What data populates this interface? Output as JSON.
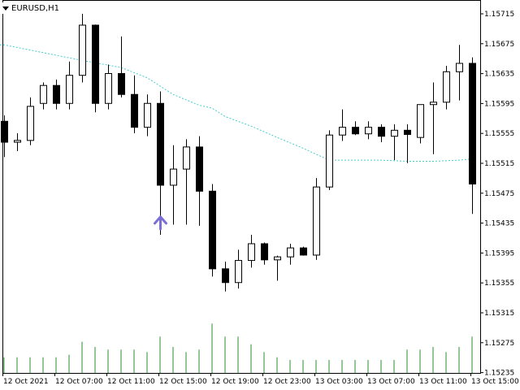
{
  "window": {
    "symbol_label": "EURUSD,H1"
  },
  "colors": {
    "background": "#ffffff",
    "axis": "#000000",
    "bull_body": "#ffffff",
    "bear_body": "#000000",
    "candle_outline": "#000000",
    "moving_average": "#48cccc",
    "volume": "#2e8b2e",
    "arrow": "#7b6fd6"
  },
  "y_axis_labels": [
    "1.15715",
    "1.15675",
    "1.15635",
    "1.15595",
    "1.15555",
    "1.15515",
    "1.15475",
    "1.15435",
    "1.15395",
    "1.15355",
    "1.15315",
    "1.15275",
    "1.15235"
  ],
  "x_axis_labels": [
    "12 Oct 2021",
    "12 Oct 07:00",
    "12 Oct 11:00",
    "12 Oct 15:00",
    "12 Oct 19:00",
    "12 Oct 23:00",
    "13 Oct 03:00",
    "13 Oct 07:00",
    "13 Oct 11:00",
    "13 Oct 15:00"
  ],
  "chart_data": {
    "type": "candlestick",
    "symbol": "EURUSD",
    "timeframe": "H1",
    "ylim": [
      1.15228,
      1.15735
    ],
    "candles": [
      {
        "o": 1.15535,
        "h": 1.15545,
        "l": 1.15475,
        "c": 1.155
      },
      {
        "o": 1.155,
        "h": 1.15515,
        "l": 1.15485,
        "c": 1.15503
      },
      {
        "o": 1.15503,
        "h": 1.15575,
        "l": 1.15495,
        "c": 1.1556
      },
      {
        "o": 1.15565,
        "h": 1.156,
        "l": 1.15555,
        "c": 1.15595
      },
      {
        "o": 1.15595,
        "h": 1.15605,
        "l": 1.15555,
        "c": 1.15565
      },
      {
        "o": 1.15565,
        "h": 1.15635,
        "l": 1.15555,
        "c": 1.15612
      },
      {
        "o": 1.15612,
        "h": 1.15715,
        "l": 1.156,
        "c": 1.15696
      },
      {
        "o": 1.15696,
        "h": 1.15697,
        "l": 1.1555,
        "c": 1.15565
      },
      {
        "o": 1.15565,
        "h": 1.1563,
        "l": 1.15555,
        "c": 1.15615
      },
      {
        "o": 1.15615,
        "h": 1.15677,
        "l": 1.15575,
        "c": 1.1558
      },
      {
        "o": 1.1558,
        "h": 1.15612,
        "l": 1.15515,
        "c": 1.15525
      },
      {
        "o": 1.15525,
        "h": 1.1558,
        "l": 1.1551,
        "c": 1.15565
      },
      {
        "o": 1.15565,
        "h": 1.15585,
        "l": 1.15345,
        "c": 1.15428
      },
      {
        "o": 1.15428,
        "h": 1.15495,
        "l": 1.15362,
        "c": 1.15455
      },
      {
        "o": 1.15455,
        "h": 1.15505,
        "l": 1.15362,
        "c": 1.15492
      },
      {
        "o": 1.15492,
        "h": 1.1551,
        "l": 1.1536,
        "c": 1.15418
      },
      {
        "o": 1.15418,
        "h": 1.1543,
        "l": 1.15275,
        "c": 1.15288
      },
      {
        "o": 1.15288,
        "h": 1.153,
        "l": 1.1525,
        "c": 1.15265
      },
      {
        "o": 1.15265,
        "h": 1.1532,
        "l": 1.15255,
        "c": 1.15302
      },
      {
        "o": 1.15302,
        "h": 1.15345,
        "l": 1.1529,
        "c": 1.1533
      },
      {
        "o": 1.1533,
        "h": 1.15332,
        "l": 1.15295,
        "c": 1.15303
      },
      {
        "o": 1.15303,
        "h": 1.1531,
        "l": 1.15268,
        "c": 1.15308
      },
      {
        "o": 1.15308,
        "h": 1.1533,
        "l": 1.15295,
        "c": 1.15323
      },
      {
        "o": 1.15323,
        "h": 1.15325,
        "l": 1.1531,
        "c": 1.15311
      },
      {
        "o": 1.15311,
        "h": 1.1544,
        "l": 1.15303,
        "c": 1.15425
      },
      {
        "o": 1.15425,
        "h": 1.1552,
        "l": 1.1542,
        "c": 1.15512
      },
      {
        "o": 1.15512,
        "h": 1.15555,
        "l": 1.15502,
        "c": 1.15525
      },
      {
        "o": 1.15525,
        "h": 1.15535,
        "l": 1.15512,
        "c": 1.15514
      },
      {
        "o": 1.15514,
        "h": 1.15535,
        "l": 1.15505,
        "c": 1.15525
      },
      {
        "o": 1.15525,
        "h": 1.1553,
        "l": 1.155,
        "c": 1.1551
      },
      {
        "o": 1.1551,
        "h": 1.1553,
        "l": 1.1547,
        "c": 1.1552
      },
      {
        "o": 1.1552,
        "h": 1.1553,
        "l": 1.15465,
        "c": 1.15513
      },
      {
        "o": 1.15508,
        "h": 1.15563,
        "l": 1.15498,
        "c": 1.15563
      },
      {
        "o": 1.15563,
        "h": 1.156,
        "l": 1.1548,
        "c": 1.15567
      },
      {
        "o": 1.15567,
        "h": 1.15628,
        "l": 1.15555,
        "c": 1.15618
      },
      {
        "o": 1.15618,
        "h": 1.15663,
        "l": 1.1557,
        "c": 1.15632
      },
      {
        "o": 1.15632,
        "h": 1.15642,
        "l": 1.1538,
        "c": 1.1543
      }
    ],
    "moving_average": [
      [
        0,
        1.15663
      ],
      [
        3,
        1.1565
      ],
      [
        6,
        1.15637
      ],
      [
        9,
        1.15625
      ],
      [
        11,
        1.15608
      ],
      [
        13,
        1.1558
      ],
      [
        15,
        1.15562
      ],
      [
        16,
        1.15557
      ],
      [
        17,
        1.15543
      ],
      [
        19,
        1.15527
      ],
      [
        21,
        1.15508
      ],
      [
        23,
        1.1549
      ],
      [
        25,
        1.1547
      ],
      [
        27,
        1.1547
      ],
      [
        29,
        1.1547
      ],
      [
        31,
        1.15468
      ],
      [
        33,
        1.15468
      ],
      [
        35,
        1.1547
      ],
      [
        36,
        1.15472
      ]
    ],
    "volumes": [
      6,
      6,
      6,
      6,
      6,
      7,
      12,
      10,
      9,
      9,
      9,
      8,
      14,
      10,
      8,
      9,
      19,
      14,
      14,
      11,
      8,
      6,
      5,
      5,
      5,
      5,
      5,
      5,
      5,
      5,
      5,
      9,
      9,
      10,
      8,
      10,
      14
    ],
    "arrow": {
      "index": 12,
      "price": 1.15375,
      "direction": "up"
    }
  }
}
